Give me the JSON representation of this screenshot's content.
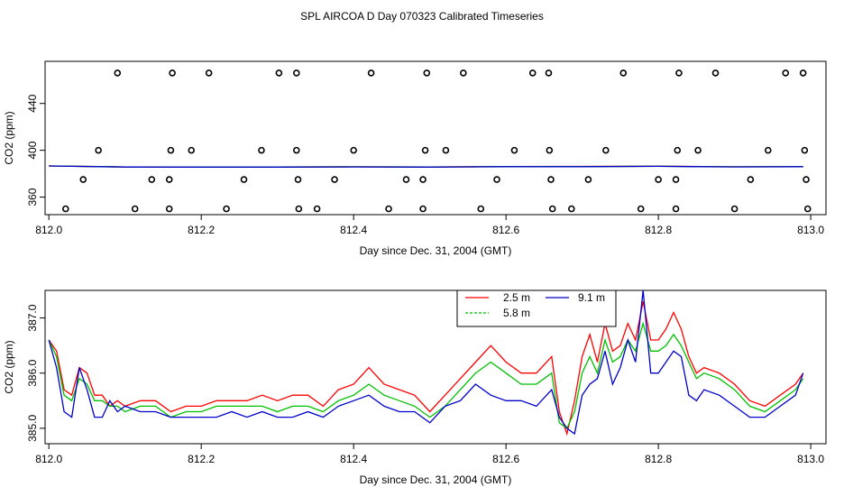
{
  "figure_title": "SPL AIRCOA D  Day 070323  Calibrated Timeseries",
  "chart_data": [
    {
      "type": "scatter",
      "xlabel": "Day since Dec. 31, 2004 (GMT)",
      "ylabel": "CO2 (ppm)",
      "xlim": [
        811.995,
        813.02
      ],
      "ylim": [
        345,
        476
      ],
      "x_ticks": [
        "812.0",
        "812.2",
        "812.4",
        "812.6",
        "812.8",
        "813.0"
      ],
      "y_ticks": [
        "360",
        "400",
        "440"
      ],
      "colors": {
        "red": "#ff0000",
        "green": "#00cc00",
        "blue": "#0000cc",
        "points": "#000000"
      },
      "points": [
        {
          "x": 812.022,
          "y": 350
        },
        {
          "x": 812.045,
          "y": 375
        },
        {
          "x": 812.065,
          "y": 400
        },
        {
          "x": 812.09,
          "y": 466
        },
        {
          "x": 812.113,
          "y": 350
        },
        {
          "x": 812.135,
          "y": 375
        },
        {
          "x": 812.158,
          "y": 375
        },
        {
          "x": 812.158,
          "y": 350
        },
        {
          "x": 812.16,
          "y": 400
        },
        {
          "x": 812.162,
          "y": 466
        },
        {
          "x": 812.187,
          "y": 400
        },
        {
          "x": 812.21,
          "y": 466
        },
        {
          "x": 812.233,
          "y": 350
        },
        {
          "x": 812.256,
          "y": 375
        },
        {
          "x": 812.279,
          "y": 400
        },
        {
          "x": 812.302,
          "y": 466
        },
        {
          "x": 812.325,
          "y": 466
        },
        {
          "x": 812.325,
          "y": 400
        },
        {
          "x": 812.327,
          "y": 375
        },
        {
          "x": 812.328,
          "y": 350
        },
        {
          "x": 812.352,
          "y": 350
        },
        {
          "x": 812.375,
          "y": 375
        },
        {
          "x": 812.4,
          "y": 400
        },
        {
          "x": 812.423,
          "y": 466
        },
        {
          "x": 812.446,
          "y": 350
        },
        {
          "x": 812.469,
          "y": 375
        },
        {
          "x": 812.491,
          "y": 375
        },
        {
          "x": 812.491,
          "y": 350
        },
        {
          "x": 812.494,
          "y": 400
        },
        {
          "x": 812.496,
          "y": 466
        },
        {
          "x": 812.521,
          "y": 400
        },
        {
          "x": 812.544,
          "y": 466
        },
        {
          "x": 812.567,
          "y": 350
        },
        {
          "x": 812.588,
          "y": 375
        },
        {
          "x": 812.611,
          "y": 400
        },
        {
          "x": 812.635,
          "y": 466
        },
        {
          "x": 812.656,
          "y": 466
        },
        {
          "x": 812.657,
          "y": 400
        },
        {
          "x": 812.659,
          "y": 375
        },
        {
          "x": 812.661,
          "y": 350
        },
        {
          "x": 812.686,
          "y": 350
        },
        {
          "x": 812.708,
          "y": 375
        },
        {
          "x": 812.731,
          "y": 400
        },
        {
          "x": 812.754,
          "y": 466
        },
        {
          "x": 812.777,
          "y": 350
        },
        {
          "x": 812.8,
          "y": 375
        },
        {
          "x": 812.823,
          "y": 375
        },
        {
          "x": 812.823,
          "y": 350
        },
        {
          "x": 812.825,
          "y": 400
        },
        {
          "x": 812.827,
          "y": 466
        },
        {
          "x": 812.852,
          "y": 400
        },
        {
          "x": 812.875,
          "y": 466
        },
        {
          "x": 812.9,
          "y": 350
        },
        {
          "x": 812.921,
          "y": 375
        },
        {
          "x": 812.944,
          "y": 400
        },
        {
          "x": 812.967,
          "y": 466
        },
        {
          "x": 812.99,
          "y": 466
        },
        {
          "x": 812.992,
          "y": 400
        },
        {
          "x": 812.994,
          "y": 375
        },
        {
          "x": 812.996,
          "y": 350
        }
      ],
      "series": [
        {
          "color": "red",
          "x": [
            812.0,
            812.1,
            812.2,
            812.3,
            812.4,
            812.5,
            812.6,
            812.7,
            812.8,
            812.9,
            812.99
          ],
          "y": [
            386.6,
            385.8,
            385.7,
            385.8,
            385.9,
            385.8,
            386.1,
            386.2,
            386.4,
            385.9,
            386.0
          ]
        },
        {
          "color": "green",
          "x": [
            812.0,
            812.1,
            812.2,
            812.3,
            812.4,
            812.5,
            812.6,
            812.7,
            812.8,
            812.9,
            812.99
          ],
          "y": [
            386.6,
            385.8,
            385.7,
            385.7,
            385.9,
            385.7,
            386.1,
            386.1,
            386.3,
            385.9,
            386.0
          ]
        },
        {
          "color": "blue",
          "x": [
            812.0,
            812.1,
            812.2,
            812.3,
            812.4,
            812.5,
            812.6,
            812.7,
            812.8,
            812.9,
            812.99
          ],
          "y": [
            386.6,
            385.7,
            385.6,
            385.6,
            385.8,
            385.6,
            386.0,
            386.0,
            386.3,
            385.8,
            386.0
          ]
        }
      ]
    },
    {
      "type": "line",
      "xlabel": "Day since Dec. 31, 2004 (GMT)",
      "ylabel": "CO2 (ppm)",
      "xlim": [
        811.995,
        813.02
      ],
      "ylim": [
        384.72,
        387.5
      ],
      "x_ticks": [
        "812.0",
        "812.2",
        "812.4",
        "812.6",
        "812.8",
        "813.0"
      ],
      "y_ticks": [
        "385.0",
        "386.0",
        "387.0"
      ],
      "legend_position": "top-center",
      "series": [
        {
          "name": "2.5 m",
          "color": "#ff0000",
          "x": [
            812.0,
            812.01,
            812.02,
            812.03,
            812.04,
            812.05,
            812.06,
            812.07,
            812.08,
            812.09,
            812.1,
            812.12,
            812.14,
            812.16,
            812.18,
            812.2,
            812.22,
            812.24,
            812.26,
            812.28,
            812.3,
            812.32,
            812.34,
            812.36,
            812.38,
            812.4,
            812.42,
            812.44,
            812.46,
            812.48,
            812.5,
            812.52,
            812.54,
            812.56,
            812.58,
            812.6,
            812.62,
            812.64,
            812.66,
            812.67,
            812.68,
            812.69,
            812.7,
            812.71,
            812.72,
            812.73,
            812.74,
            812.75,
            812.76,
            812.77,
            812.78,
            812.79,
            812.8,
            812.81,
            812.82,
            812.83,
            812.84,
            812.85,
            812.86,
            812.88,
            812.9,
            812.92,
            812.94,
            812.96,
            812.98,
            812.99
          ],
          "y": [
            386.6,
            386.4,
            385.7,
            385.6,
            386.1,
            386.0,
            385.6,
            385.6,
            385.4,
            385.5,
            385.4,
            385.5,
            385.5,
            385.3,
            385.4,
            385.4,
            385.5,
            385.5,
            385.5,
            385.6,
            385.5,
            385.6,
            385.6,
            385.4,
            385.7,
            385.8,
            386.1,
            385.8,
            385.7,
            385.6,
            385.3,
            385.6,
            385.9,
            386.2,
            386.5,
            386.2,
            386.0,
            386.0,
            386.3,
            385.3,
            384.9,
            385.5,
            386.3,
            386.7,
            386.2,
            386.9,
            386.4,
            386.5,
            386.9,
            386.6,
            387.3,
            386.6,
            386.6,
            386.8,
            387.1,
            386.8,
            386.3,
            386.0,
            386.1,
            386.0,
            385.8,
            385.5,
            385.4,
            385.6,
            385.8,
            386.0
          ]
        },
        {
          "name": "5.8 m",
          "color": "#00c000",
          "x": [
            812.0,
            812.01,
            812.02,
            812.03,
            812.04,
            812.05,
            812.06,
            812.07,
            812.08,
            812.09,
            812.1,
            812.12,
            812.14,
            812.16,
            812.18,
            812.2,
            812.22,
            812.24,
            812.26,
            812.28,
            812.3,
            812.32,
            812.34,
            812.36,
            812.38,
            812.4,
            812.42,
            812.44,
            812.46,
            812.48,
            812.5,
            812.52,
            812.54,
            812.56,
            812.58,
            812.6,
            812.62,
            812.64,
            812.66,
            812.67,
            812.68,
            812.69,
            812.7,
            812.71,
            812.72,
            812.73,
            812.74,
            812.75,
            812.76,
            812.77,
            812.78,
            812.79,
            812.8,
            812.81,
            812.82,
            812.83,
            812.84,
            812.85,
            812.86,
            812.88,
            812.9,
            812.92,
            812.94,
            812.96,
            812.98,
            812.99
          ],
          "y": [
            386.6,
            386.3,
            385.6,
            385.5,
            385.9,
            385.8,
            385.5,
            385.5,
            385.4,
            385.4,
            385.3,
            385.4,
            385.4,
            385.2,
            385.3,
            385.3,
            385.4,
            385.4,
            385.4,
            385.4,
            385.3,
            385.4,
            385.4,
            385.3,
            385.5,
            385.6,
            385.8,
            385.6,
            385.5,
            385.4,
            385.2,
            385.4,
            385.7,
            386.0,
            386.2,
            386.0,
            385.8,
            385.8,
            386.0,
            385.1,
            385.0,
            385.3,
            386.0,
            386.3,
            386.0,
            386.6,
            386.2,
            386.3,
            386.6,
            386.4,
            386.9,
            386.4,
            386.4,
            386.5,
            386.7,
            386.5,
            386.2,
            385.9,
            386.0,
            385.9,
            385.7,
            385.4,
            385.3,
            385.5,
            385.7,
            385.9
          ]
        },
        {
          "name": "9.1 m",
          "color": "#0000cc",
          "x": [
            812.0,
            812.01,
            812.02,
            812.03,
            812.04,
            812.05,
            812.06,
            812.07,
            812.08,
            812.09,
            812.1,
            812.12,
            812.14,
            812.16,
            812.18,
            812.2,
            812.22,
            812.24,
            812.26,
            812.28,
            812.3,
            812.32,
            812.34,
            812.36,
            812.38,
            812.4,
            812.42,
            812.44,
            812.46,
            812.48,
            812.5,
            812.52,
            812.54,
            812.56,
            812.58,
            812.6,
            812.62,
            812.64,
            812.66,
            812.67,
            812.68,
            812.69,
            812.7,
            812.71,
            812.72,
            812.73,
            812.74,
            812.75,
            812.76,
            812.77,
            812.78,
            812.79,
            812.8,
            812.81,
            812.82,
            812.83,
            812.84,
            812.85,
            812.86,
            812.88,
            812.9,
            812.92,
            812.94,
            812.96,
            812.98,
            812.99
          ],
          "y": [
            386.6,
            386.1,
            385.3,
            385.2,
            386.1,
            385.7,
            385.2,
            385.2,
            385.5,
            385.3,
            385.4,
            385.3,
            385.3,
            385.2,
            385.2,
            385.2,
            385.2,
            385.3,
            385.2,
            385.3,
            385.2,
            385.2,
            385.3,
            385.2,
            385.4,
            385.5,
            385.6,
            385.4,
            385.3,
            385.3,
            385.1,
            385.4,
            385.5,
            385.8,
            385.6,
            385.5,
            385.5,
            385.4,
            385.7,
            385.2,
            385.0,
            384.9,
            385.6,
            385.8,
            385.9,
            386.4,
            385.8,
            386.1,
            386.6,
            386.2,
            387.5,
            386.0,
            386.0,
            386.2,
            386.4,
            386.3,
            385.6,
            385.5,
            385.7,
            385.6,
            385.4,
            385.2,
            385.2,
            385.4,
            385.6,
            386.0
          ]
        }
      ]
    }
  ]
}
